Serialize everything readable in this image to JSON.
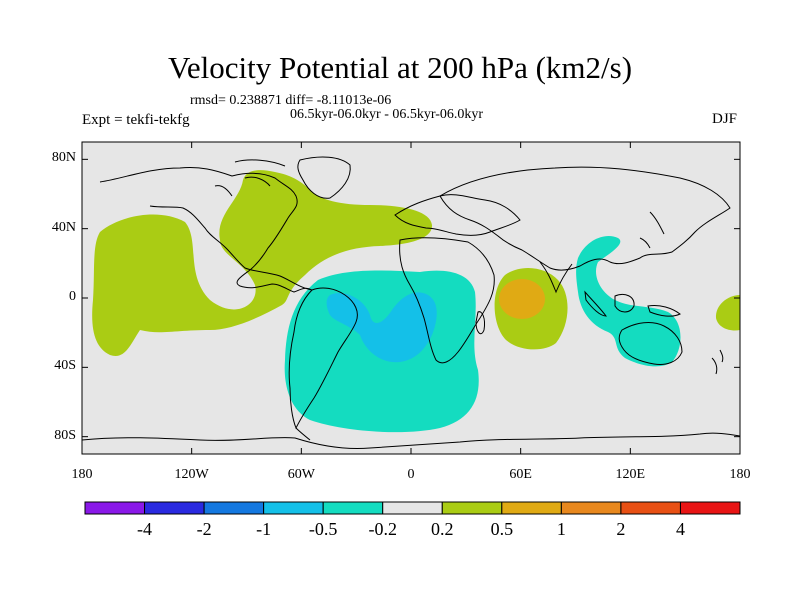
{
  "title": "Velocity Potential at 200 hPa (km2/s)",
  "stats": "rmsd= 0.238871 diff= -8.11013e-06",
  "period": "06.5kyr-06.0kyr - 06.5kyr-06.0kyr",
  "experiment": "Expt = tekfi-tekfg",
  "season": "DJF",
  "y_ticks": [
    "80N",
    "40N",
    "0",
    "40S",
    "80S"
  ],
  "x_ticks": [
    "180",
    "120W",
    "60W",
    "0",
    "60E",
    "120E",
    "180"
  ],
  "colorbar": {
    "colors": [
      "#8A18E8",
      "#2A2AE0",
      "#1478E0",
      "#14C0E8",
      "#14DCC0",
      "#E6E6E6",
      "#AACC14",
      "#E0AA14",
      "#E8881E",
      "#E85014",
      "#E81414"
    ],
    "labels": [
      "-4",
      "-2",
      "-1",
      "-0.5",
      "-0.2",
      "0.2",
      "0.5",
      "1",
      "2",
      "4"
    ]
  },
  "colors": {
    "background": "#E6E6E6",
    "positive": "#AACC14",
    "positive_strong": "#E0AA14",
    "negative": "#14DCC0",
    "negative_strong": "#14C0E8",
    "coast": "#000000"
  }
}
